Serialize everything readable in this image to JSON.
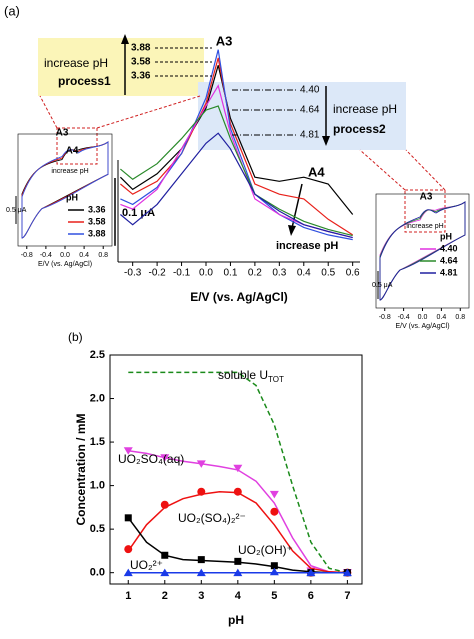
{
  "chart_data": [
    {
      "type": "line",
      "panel_label": "(a)",
      "x": [
        -0.35,
        -0.3,
        -0.2,
        -0.1,
        0,
        0.05,
        0.1,
        0.2,
        0.3,
        0.4,
        0.5,
        0.6
      ],
      "xlim": [
        -0.36,
        0.63
      ],
      "ylim": [
        0,
        0.32
      ],
      "xticks": [
        -0.3,
        -0.2,
        -0.1,
        {
          "value": 0,
          "label": "0.0"
        },
        0.1,
        0.2,
        0.3,
        0.4,
        0.5,
        0.6
      ],
      "x_label": "E/V (vs. Ag/AgCl)",
      "scale_bar": {
        "value": 0.1,
        "label": "0.1 μA"
      },
      "series": [
        {
          "name": "3.36",
          "color": "#000000",
          "values": [
            0.125,
            0.107,
            0.13,
            0.167,
            0.227,
            0.29,
            0.212,
            0.125,
            0.119,
            0.125,
            0.115,
            0.07
          ]
        },
        {
          "name": "3.58",
          "color": "#e8201a",
          "values": [
            0.115,
            0.1,
            0.119,
            0.16,
            0.234,
            0.301,
            0.204,
            0.115,
            0.1,
            0.093,
            0.063,
            0.04
          ]
        },
        {
          "name": "3.88",
          "color": "#3050e0",
          "values": [
            0.093,
            0.085,
            0.11,
            0.16,
            0.242,
            0.313,
            0.197,
            0.1,
            0.07,
            0.051,
            0.04,
            0.033
          ]
        },
        {
          "name": "4.40",
          "color": "#e030e0",
          "values": [
            0.085,
            0.078,
            0.107,
            0.167,
            0.23,
            0.26,
            0.19,
            0.093,
            0.07,
            0.055,
            0.045,
            0.036
          ]
        },
        {
          "name": "4.64",
          "color": "#2a8a2a",
          "values": [
            0.137,
            0.122,
            0.145,
            0.182,
            0.224,
            0.23,
            0.182,
            0.1,
            0.078,
            0.06,
            0.048,
            0.039
          ]
        },
        {
          "name": "4.81",
          "color": "#2020a0",
          "values": [
            0.07,
            0.055,
            0.085,
            0.13,
            0.175,
            0.19,
            0.167,
            0.1,
            0.075,
            0.055,
            0.045,
            0.036
          ]
        }
      ],
      "annotations": [
        "A3",
        "increase pH",
        "process1",
        "increase pH",
        "process2",
        "A4",
        "increase pH"
      ],
      "insets": [
        {
          "labels": [
            "A3",
            "A4",
            "increase pH"
          ],
          "legend_title": "pH",
          "scale": "0.5 μA",
          "series": [
            0,
            1,
            2
          ]
        },
        {
          "labels": [
            "A3",
            "increase pH"
          ],
          "legend_title": "pH",
          "scale": "0.5 μA",
          "series": [
            3,
            4,
            5
          ]
        }
      ],
      "inset_xticks": [
        -0.8,
        -0.4,
        {
          "value": 0,
          "label": "0.0"
        },
        0.4,
        0.8
      ],
      "inset_xlim": [
        -0.9,
        0.9
      ],
      "inset_x_label": "E/V (vs. Ag/AgCl)"
    },
    {
      "type": "scatter",
      "panel_label": "(b)",
      "x": [
        1,
        2,
        3,
        4,
        5,
        6,
        7
      ],
      "x_fit": [
        1,
        1.5,
        2,
        2.5,
        3,
        3.5,
        4,
        4.5,
        5,
        5.5,
        6,
        6.5,
        7
      ],
      "xlim": [
        0.5,
        7.4
      ],
      "ylim": [
        -0.13,
        2.5
      ],
      "xticks": [
        1,
        2,
        3,
        4,
        5,
        6,
        7
      ],
      "yticks": [
        {
          "value": 0,
          "label": "0.0"
        },
        0.5,
        {
          "value": 1,
          "label": "1.0"
        },
        1.5,
        {
          "value": 2,
          "label": "2.0"
        },
        2.5
      ],
      "x_label": "pH",
      "y_label": "Concentration / mM",
      "series": [
        {
          "name": "soluble U",
          "name_subscript": "TOT",
          "color": "#1a8a1a",
          "dashed": true,
          "fit": [
            2.3,
            2.3,
            2.3,
            2.3,
            2.3,
            2.3,
            2.3,
            2.15,
            1.7,
            1.0,
            0.35,
            0.05,
            0
          ]
        },
        {
          "name": "UO₂SO₄(aq)",
          "color": "#e040e0",
          "marker": "tri-down",
          "values": [
            1.4,
            1.32,
            1.25,
            1.2,
            0.9,
            0.02,
            0
          ],
          "fit": [
            1.4,
            1.37,
            1.32,
            1.28,
            1.25,
            1.22,
            1.18,
            1.05,
            0.8,
            0.4,
            0.08,
            0.01,
            0
          ]
        },
        {
          "name": "UO₂(SO₄)₂²⁻",
          "color": "#ee1111",
          "marker": "circle",
          "values": [
            0.27,
            0.78,
            0.93,
            0.93,
            0.7,
            0,
            0
          ],
          "fit": [
            0.25,
            0.55,
            0.75,
            0.85,
            0.9,
            0.93,
            0.92,
            0.8,
            0.55,
            0.25,
            0.05,
            0.01,
            0
          ]
        },
        {
          "name": "UO₂(OH)⁺",
          "color": "#000000",
          "marker": "square",
          "values": [
            0.63,
            0.2,
            0.15,
            0.13,
            0.08,
            0,
            0
          ],
          "fit": [
            0.63,
            0.35,
            0.2,
            0.15,
            0.14,
            0.13,
            0.12,
            0.1,
            0.07,
            0.03,
            0.01,
            0,
            0
          ]
        },
        {
          "name": "UO₂²⁺",
          "color": "#1a3ae8",
          "marker": "tri-up",
          "values": [
            0,
            0,
            0,
            0,
            0.01,
            0,
            0
          ],
          "fit": [
            0,
            0,
            0,
            0,
            0,
            0,
            0,
            0,
            0,
            0,
            0,
            0,
            0
          ]
        }
      ]
    }
  ]
}
